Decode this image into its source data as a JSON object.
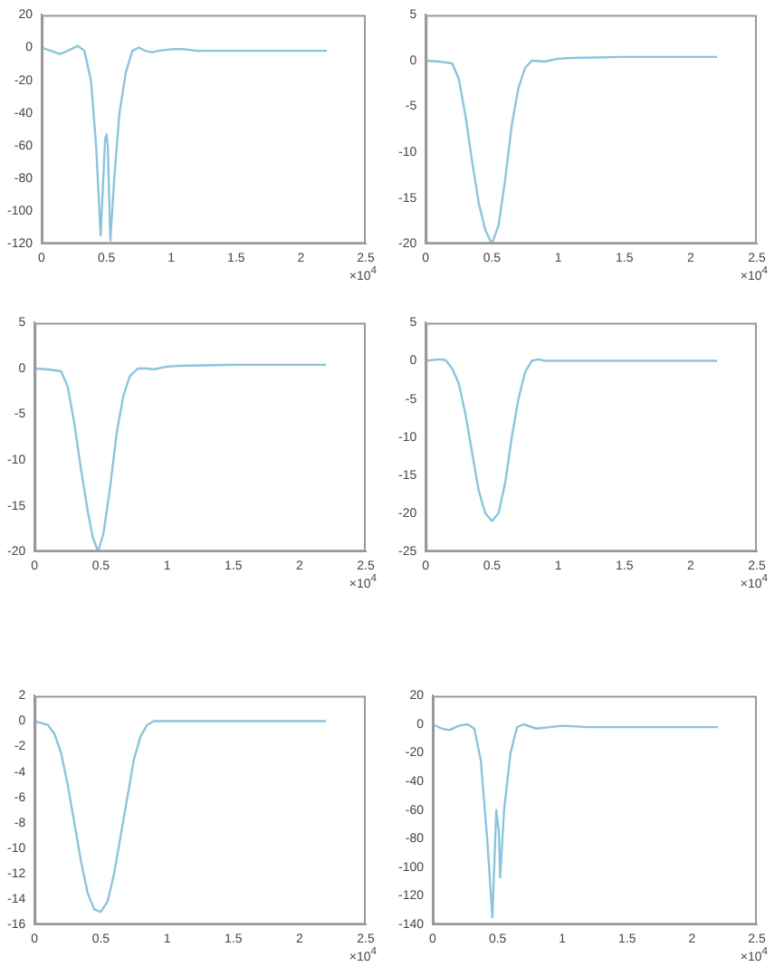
{
  "chart_data": [
    {
      "type": "line",
      "x": [
        0,
        0.07,
        0.14,
        0.2,
        0.28,
        0.33,
        0.38,
        0.42,
        0.455,
        0.49,
        0.5,
        0.51,
        0.53,
        0.56,
        0.6,
        0.65,
        0.7,
        0.75,
        0.8,
        0.85,
        0.9,
        1.0,
        1.1,
        1.2,
        1.5,
        2.2
      ],
      "series": [
        {
          "color": "#8cc4dc",
          "values": [
            0,
            -2,
            -4,
            -2,
            1,
            -2,
            -20,
            -60,
            -115,
            -55,
            -53,
            -60,
            -118,
            -80,
            -40,
            -15,
            -2,
            0,
            -2,
            -3,
            -2,
            -1,
            -1,
            -2,
            -2,
            -2
          ]
        }
      ],
      "xlim": [
        0,
        2.5
      ],
      "xticks": [
        0,
        0.5,
        1,
        1.5,
        2,
        2.5
      ],
      "ylim": [
        -120,
        20
      ],
      "yticks": [
        -120,
        -100,
        -80,
        -60,
        -40,
        -20,
        0,
        20
      ],
      "annotations": [
        "×10$^{4}$"
      ],
      "legend": false,
      "grid": false,
      "marker": "none"
    },
    {
      "type": "line",
      "x": [
        0,
        0.1,
        0.2,
        0.25,
        0.3,
        0.35,
        0.4,
        0.45,
        0.5,
        0.55,
        0.6,
        0.65,
        0.7,
        0.75,
        0.8,
        0.9,
        1.0,
        1.1,
        1.5,
        2.2
      ],
      "series": [
        {
          "color": "#8cc4dc",
          "values": [
            0,
            -0.1,
            -0.3,
            -2,
            -6,
            -11,
            -15.5,
            -18.5,
            -20,
            -18,
            -13,
            -7,
            -3,
            -0.8,
            0,
            -0.1,
            0.2,
            0.3,
            0.4,
            0.4
          ]
        }
      ],
      "xlim": [
        0,
        2.5
      ],
      "xticks": [
        0,
        0.5,
        1,
        1.5,
        2,
        2.5
      ],
      "ylim": [
        -20,
        5
      ],
      "yticks": [
        -20,
        -15,
        -10,
        -5,
        0,
        5
      ],
      "annotations": [
        "×10$^{4}$"
      ],
      "legend": false,
      "grid": false,
      "marker": "none"
    },
    {
      "type": "line",
      "x": [
        0,
        0.1,
        0.2,
        0.25,
        0.3,
        0.35,
        0.4,
        0.44,
        0.48,
        0.52,
        0.57,
        0.62,
        0.67,
        0.72,
        0.78,
        0.85,
        0.9,
        1.0,
        1.1,
        1.5,
        2.2
      ],
      "series": [
        {
          "color": "#8cc4dc",
          "values": [
            0,
            -0.1,
            -0.3,
            -2,
            -6,
            -11,
            -15.5,
            -18.5,
            -20,
            -18,
            -13,
            -7,
            -3,
            -0.8,
            0,
            0,
            -0.1,
            0.2,
            0.3,
            0.4,
            0.4
          ]
        }
      ],
      "xlim": [
        0,
        2.5
      ],
      "xticks": [
        0,
        0.5,
        1,
        1.5,
        2,
        2.5
      ],
      "ylim": [
        -20,
        5
      ],
      "yticks": [
        -20,
        -15,
        -10,
        -5,
        0,
        5
      ],
      "annotations": [
        "×10$^{4}$"
      ],
      "legend": false,
      "grid": false,
      "marker": "none"
    },
    {
      "type": "line",
      "x": [
        0,
        0.1,
        0.15,
        0.2,
        0.25,
        0.3,
        0.35,
        0.4,
        0.45,
        0.5,
        0.55,
        0.6,
        0.65,
        0.7,
        0.75,
        0.8,
        0.85,
        0.9,
        1.0,
        2.2
      ],
      "series": [
        {
          "color": "#8cc4dc",
          "values": [
            0,
            0.2,
            0.1,
            -1,
            -3,
            -7,
            -12,
            -17,
            -20,
            -21,
            -20,
            -16,
            -10,
            -5,
            -1.5,
            0,
            0.2,
            0,
            0,
            0
          ]
        }
      ],
      "xlim": [
        0,
        2.5
      ],
      "xticks": [
        0,
        0.5,
        1,
        1.5,
        2,
        2.5
      ],
      "ylim": [
        -25,
        5
      ],
      "yticks": [
        -25,
        -20,
        -15,
        -10,
        -5,
        0,
        5
      ],
      "annotations": [
        "×10$^{4}$"
      ],
      "legend": false,
      "grid": false,
      "marker": "none"
    },
    {
      "type": "line",
      "x": [
        0,
        0.1,
        0.15,
        0.2,
        0.25,
        0.3,
        0.35,
        0.4,
        0.45,
        0.5,
        0.55,
        0.6,
        0.65,
        0.7,
        0.75,
        0.8,
        0.85,
        0.9,
        2.2
      ],
      "series": [
        {
          "color": "#8cc4dc",
          "values": [
            0,
            -0.3,
            -1,
            -2.5,
            -5,
            -8,
            -11,
            -13.5,
            -14.8,
            -15,
            -14.2,
            -12,
            -9,
            -6,
            -3,
            -1.2,
            -0.3,
            0,
            0
          ]
        }
      ],
      "xlim": [
        0,
        2.5
      ],
      "xticks": [
        0,
        0.5,
        1,
        1.5,
        2,
        2.5
      ],
      "ylim": [
        -16,
        2
      ],
      "yticks": [
        -16,
        -14,
        -12,
        -10,
        -8,
        -6,
        -4,
        -2,
        0,
        2
      ],
      "annotations": [
        "×10$^{4}$"
      ],
      "legend": false,
      "grid": false,
      "marker": "none"
    },
    {
      "type": "line",
      "x": [
        0,
        0.07,
        0.13,
        0.2,
        0.27,
        0.32,
        0.37,
        0.42,
        0.46,
        0.49,
        0.51,
        0.52,
        0.55,
        0.6,
        0.65,
        0.7,
        0.8,
        0.9,
        1.0,
        1.2,
        1.5,
        2.2
      ],
      "series": [
        {
          "color": "#8cc4dc",
          "values": [
            0,
            -3,
            -4,
            -1,
            0,
            -3,
            -25,
            -80,
            -135,
            -60,
            -75,
            -107,
            -60,
            -20,
            -2,
            0,
            -3,
            -2,
            -1,
            -2,
            -2,
            -2
          ]
        }
      ],
      "xlim": [
        0,
        2.5
      ],
      "xticks": [
        0,
        0.5,
        1,
        1.5,
        2,
        2.5
      ],
      "ylim": [
        -140,
        20
      ],
      "yticks": [
        -140,
        -120,
        -100,
        -80,
        -60,
        -40,
        -20,
        0,
        20
      ],
      "annotations": [
        "×10$^{4}$"
      ],
      "legend": false,
      "grid": false,
      "marker": "none"
    }
  ]
}
